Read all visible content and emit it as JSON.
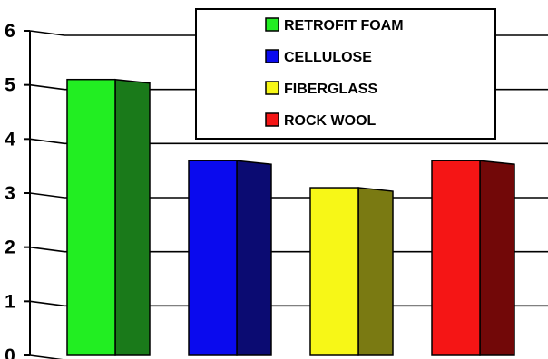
{
  "chart_data": {
    "type": "bar",
    "categories": [
      "RETROFIT FOAM",
      "CELLULOSE",
      "FIBERGLASS",
      "ROCK WOOL"
    ],
    "values": [
      5.1,
      3.6,
      3.1,
      3.6
    ],
    "title": "",
    "xlabel": "",
    "ylabel": "",
    "ylim": [
      0,
      6
    ],
    "yticks": [
      "0",
      "1",
      "2",
      "3",
      "4",
      "5",
      "6"
    ],
    "grid": true,
    "legend_position": "top-right",
    "style": "3d",
    "series": [
      {
        "values": [
          5.1,
          3.6,
          3.1,
          3.6
        ]
      }
    ],
    "colors": {
      "front": [
        "#22ee22",
        "#0a0aee",
        "#f7f717",
        "#f51515"
      ],
      "side": [
        "#1a7a1a",
        "#0b0b72",
        "#7a7a12",
        "#720808"
      ]
    }
  }
}
